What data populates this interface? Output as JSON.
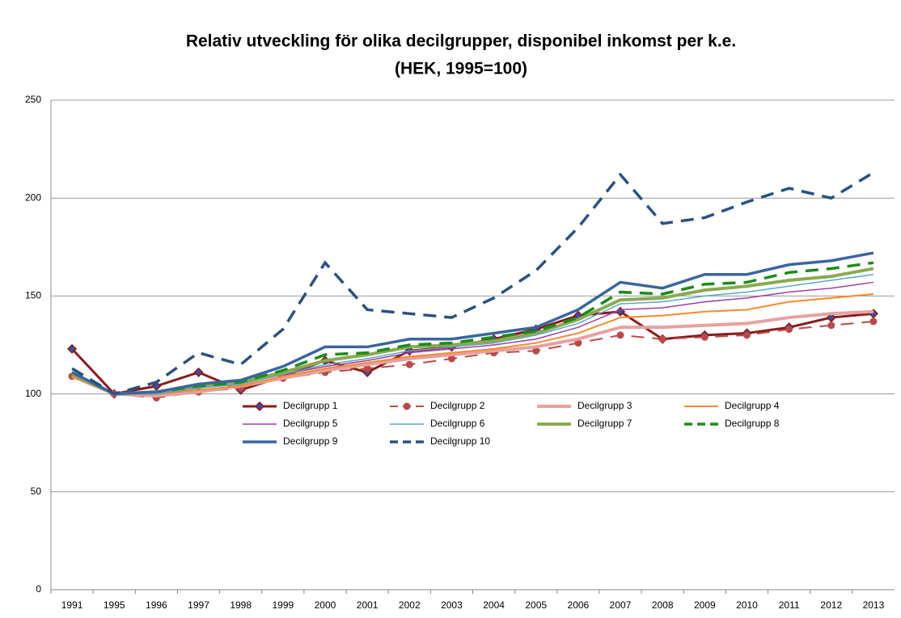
{
  "chart_data": {
    "type": "line",
    "title": [
      "Relativ utveckling för olika decilgrupper, disponibel inkomst per k.e.",
      "(HEK, 1995=100)"
    ],
    "categories": [
      "1991",
      "1995",
      "1996",
      "1997",
      "1998",
      "1999",
      "2000",
      "2001",
      "2002",
      "2003",
      "2004",
      "2005",
      "2006",
      "2007",
      "2008",
      "2009",
      "2010",
      "2011",
      "2012",
      "2013"
    ],
    "ylim": [
      0,
      250
    ],
    "yticks": [
      0,
      50,
      100,
      150,
      200,
      250
    ],
    "grid": true,
    "series": [
      {
        "name": "Decilgrupp 1",
        "color": "#8b1a1a",
        "marker": "diamond",
        "values": [
          123,
          100,
          104,
          111,
          102,
          109,
          117,
          111,
          122,
          124,
          128,
          133,
          140,
          142,
          128,
          130,
          131,
          134,
          139,
          141
        ]
      },
      {
        "name": "Decilgrupp 2",
        "color": "#b84a4a",
        "marker": "circle",
        "dashed": true,
        "values": [
          109,
          100,
          98,
          101,
          103,
          108,
          111,
          113,
          115,
          118,
          121,
          122,
          126,
          130,
          128,
          129,
          130,
          133,
          135,
          137
        ]
      },
      {
        "name": "Decilgrupp 3",
        "color": "#e8a0a0",
        "values": [
          109,
          100,
          99,
          101,
          104,
          108,
          112,
          115,
          118,
          120,
          122,
          124,
          128,
          134,
          134,
          135,
          136,
          139,
          141,
          142
        ]
      },
      {
        "name": "Decilgrupp 4",
        "color": "#f58a2a",
        "values": [
          109,
          100,
          100,
          102,
          104,
          109,
          113,
          116,
          119,
          121,
          123,
          126,
          131,
          139,
          140,
          142,
          143,
          147,
          149,
          151
        ]
      },
      {
        "name": "Decilgrupp 5",
        "color": "#9a3fa8",
        "values": [
          110,
          100,
          100,
          103,
          105,
          110,
          114,
          117,
          121,
          123,
          125,
          128,
          134,
          143,
          144,
          147,
          149,
          152,
          154,
          157
        ]
      },
      {
        "name": "Decilgrupp 6",
        "color": "#5aa8c8",
        "values": [
          110,
          100,
          100,
          103,
          105,
          110,
          115,
          118,
          122,
          124,
          126,
          130,
          136,
          146,
          147,
          150,
          152,
          155,
          158,
          161
        ]
      },
      {
        "name": "Decilgrupp 7",
        "color": "#8aaa50",
        "values": [
          110,
          100,
          101,
          104,
          106,
          111,
          117,
          120,
          124,
          125,
          127,
          131,
          138,
          148,
          149,
          153,
          155,
          158,
          160,
          164
        ]
      },
      {
        "name": "Decilgrupp 8",
        "color": "#1d8a1d",
        "dashed": true,
        "values": [
          111,
          100,
          101,
          104,
          106,
          112,
          120,
          121,
          125,
          126,
          129,
          132,
          139,
          152,
          151,
          156,
          157,
          162,
          164,
          167
        ]
      },
      {
        "name": "Decilgrupp 9",
        "color": "#3a65a0",
        "values": [
          111,
          100,
          101,
          105,
          107,
          114,
          124,
          124,
          128,
          128,
          131,
          134,
          143,
          157,
          154,
          161,
          161,
          166,
          168,
          172
        ]
      },
      {
        "name": "Decilgrupp 10",
        "color": "#2b5082",
        "dashed": true,
        "values": [
          113,
          100,
          106,
          121,
          115,
          133,
          167,
          143,
          141,
          139,
          149,
          163,
          185,
          212,
          187,
          190,
          198,
          205,
          200,
          213
        ]
      }
    ]
  }
}
